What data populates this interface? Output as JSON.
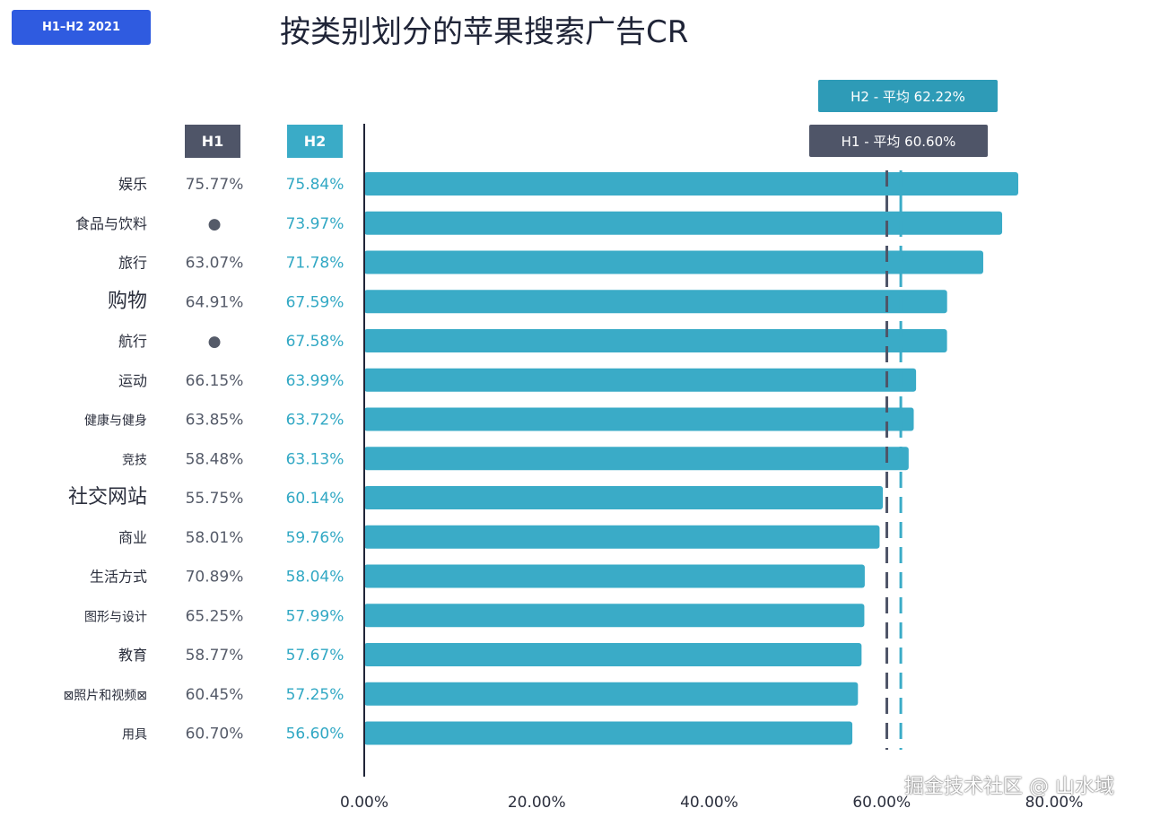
{
  "period_badge": "H1–H2 2021",
  "chart_data": {
    "type": "bar",
    "orientation": "horizontal",
    "title": "按类别划分的苹果搜索广告CR",
    "column_headers": {
      "h1": "H1",
      "h2": "H2"
    },
    "categories": [
      "娱乐",
      "食品与饮料",
      "旅行",
      "购物",
      "航行",
      "运动",
      "健康与健身",
      "竞技",
      "社交网站",
      "商业",
      "生活方式",
      "图形与设计",
      "教育",
      "⊠照片和视频⊠",
      "用具"
    ],
    "series": [
      {
        "name": "H1",
        "labels": [
          "75.77%",
          "●",
          "63.07%",
          "64.91%",
          "●",
          "66.15%",
          "63.85%",
          "58.48%",
          "55.75%",
          "58.01%",
          "70.89%",
          "65.25%",
          "58.77%",
          "60.45%",
          "60.70%"
        ],
        "values": [
          75.77,
          null,
          63.07,
          64.91,
          null,
          66.15,
          63.85,
          58.48,
          55.75,
          58.01,
          70.89,
          65.25,
          58.77,
          60.45,
          60.7
        ]
      },
      {
        "name": "H2",
        "labels": [
          "75.84%",
          "73.97%",
          "71.78%",
          "67.59%",
          "67.58%",
          "63.99%",
          "63.72%",
          "63.13%",
          "60.14%",
          "59.76%",
          "58.04%",
          "57.99%",
          "57.67%",
          "57.25%",
          "56.60%"
        ],
        "values": [
          75.84,
          73.97,
          71.78,
          67.59,
          67.58,
          63.99,
          63.72,
          63.13,
          60.14,
          59.76,
          58.04,
          57.99,
          57.67,
          57.25,
          56.6
        ]
      }
    ],
    "plotted_series": "H2",
    "averages": [
      {
        "name": "H2",
        "label": "H2 - 平均 62.22%",
        "value": 62.22
      },
      {
        "name": "H1",
        "label": "H1 - 平均 60.60%",
        "value": 60.6
      }
    ],
    "xlim": [
      0,
      80
    ],
    "x_ticks": [
      0,
      20,
      40,
      60,
      80
    ],
    "x_tick_labels": [
      "0.00%",
      "20.00%",
      "40.00%",
      "60.00%",
      "80.00%"
    ],
    "colors": {
      "h2_bar": "#3aabc7",
      "h1_avg_line": "#4f5568",
      "h2_avg_line": "#3aabc7"
    }
  },
  "watermark": "掘金技术社区 @ 山水域"
}
